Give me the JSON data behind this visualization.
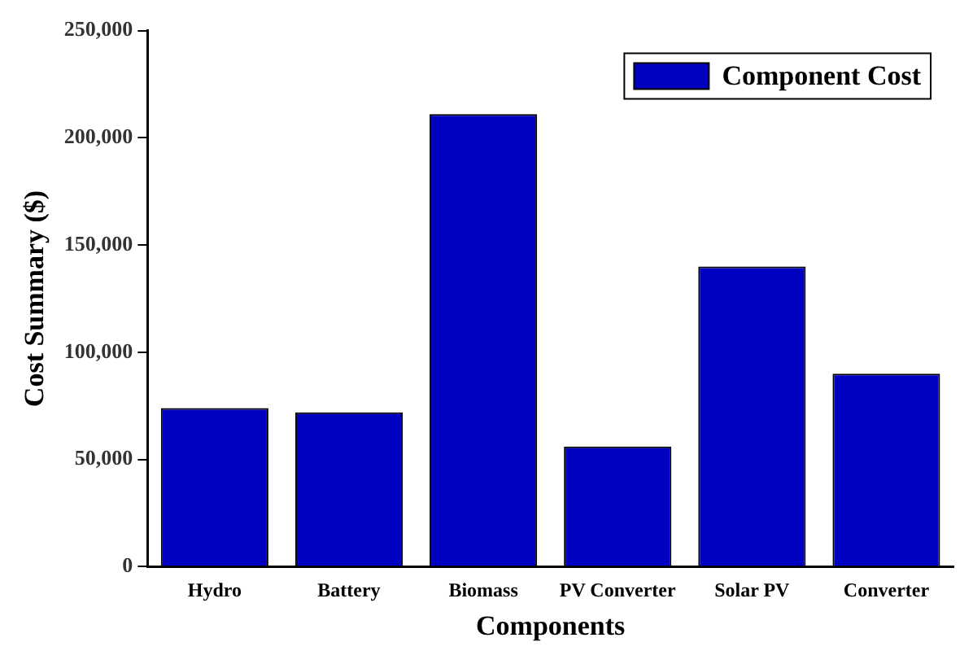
{
  "chart_data": {
    "type": "bar",
    "xlabel": "Components",
    "ylabel": "Cost Summary ($)",
    "categories": [
      "Hydro",
      "Battery",
      "Biomass",
      "PV Converter",
      "Solar PV",
      "Converter"
    ],
    "series": [
      {
        "name": "Component Cost",
        "color": "#0000c0",
        "values": [
          74000,
          72000,
          211000,
          56000,
          140000,
          90000
        ]
      }
    ],
    "ylim": [
      0,
      250000
    ],
    "yticks": [
      {
        "value": 0,
        "label": "0"
      },
      {
        "value": 50000,
        "label": "50,000"
      },
      {
        "value": 100000,
        "label": "100,000"
      },
      {
        "value": 150000,
        "label": "150,000"
      },
      {
        "value": 200000,
        "label": "200,000"
      },
      {
        "value": 250000,
        "label": "250,000"
      }
    ],
    "grid": false,
    "legend": "top right"
  }
}
